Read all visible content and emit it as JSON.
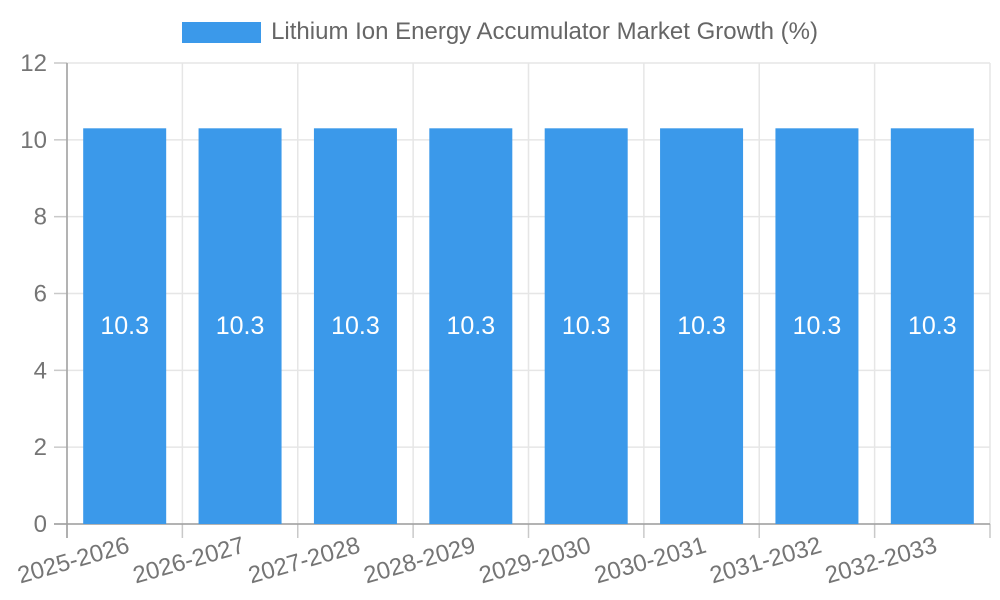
{
  "chart_data": {
    "type": "bar",
    "title": "Lithium Ion Energy Accumulator Market Growth (%)",
    "legend": {
      "label": "Lithium Ion Energy Accumulator Market Growth (%)",
      "position": "top"
    },
    "categories": [
      "2025-2026",
      "2026-2027",
      "2027-2028",
      "2028-2029",
      "2029-2030",
      "2030-2031",
      "2031-2032",
      "2032-2033"
    ],
    "values": [
      10.3,
      10.3,
      10.3,
      10.3,
      10.3,
      10.3,
      10.3,
      10.3
    ],
    "value_labels": [
      "10.3",
      "10.3",
      "10.3",
      "10.3",
      "10.3",
      "10.3",
      "10.3",
      "10.3"
    ],
    "xlabel": "",
    "ylabel": "",
    "ylim": [
      0,
      12
    ],
    "yticks": [
      0,
      2,
      4,
      6,
      8,
      10,
      12
    ],
    "grid": true,
    "x_tick_rotation_deg": -16,
    "colors": {
      "bar": "#3B99EA",
      "grid": "#E6E6E6",
      "tick": "#C9C9C9",
      "axis": "#9E9E9E",
      "tick_label": "#757575",
      "legend_label": "#666666",
      "value_label": "#FFFFFF",
      "background": "#FFFFFF"
    }
  }
}
